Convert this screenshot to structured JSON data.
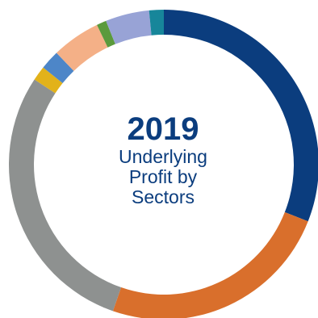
{
  "chart_data": {
    "type": "pie",
    "title": "2019",
    "subtitle_lines": [
      "Underlying",
      "Profit by",
      "Sectors"
    ],
    "categories": [
      "",
      "",
      "",
      "",
      "",
      "",
      "",
      "",
      ""
    ],
    "values": [
      30.5,
      24.0,
      28.5,
      1.5,
      2.0,
      5.0,
      1.0,
      4.5,
      1.5
    ],
    "colors": [
      "#0b3d7e",
      "#d96f2c",
      "#8e9190",
      "#e2b21a",
      "#4d86c8",
      "#f4b087",
      "#5a9a3c",
      "#98a3d6",
      "#17869a"
    ],
    "donut": true,
    "start_angle_deg": 0,
    "direction": "clockwise",
    "legend": "none"
  }
}
